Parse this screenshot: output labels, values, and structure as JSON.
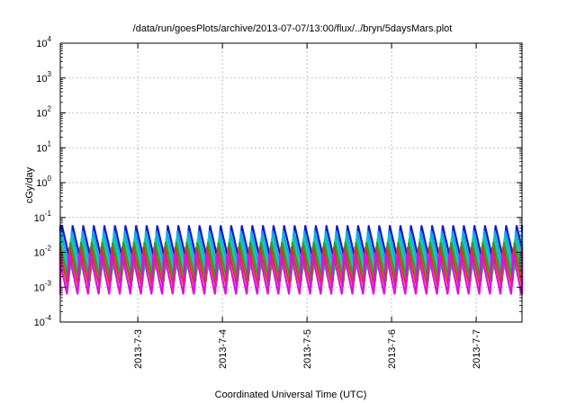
{
  "chart_data": {
    "type": "line",
    "title": "/data/run/goesPlots/archive/2013-07-07/13:00/flux/../bryn/5daysMars.plot",
    "xlabel": "Coordinated Universal Time (UTC)",
    "ylabel": "cGy/day",
    "yscale": "log",
    "ylim_exponent": [
      -4,
      4
    ],
    "ytick_labels": [
      {
        "base": "10",
        "exp": "-4"
      },
      {
        "base": "10",
        "exp": "-3"
      },
      {
        "base": "10",
        "exp": "-2"
      },
      {
        "base": "10",
        "exp": "-1"
      },
      {
        "base": "10",
        "exp": "0"
      },
      {
        "base": "10",
        "exp": "1"
      },
      {
        "base": "10",
        "exp": "2"
      },
      {
        "base": "10",
        "exp": "3"
      },
      {
        "base": "10",
        "exp": "4"
      }
    ],
    "xlim": [
      "2013-07-02 02:00",
      "2013-07-07 13:00"
    ],
    "x_ticks": [
      "2013-07-03",
      "2013-07-04",
      "2013-07-05",
      "2013-07-06",
      "2013-07-07"
    ],
    "xtick_labels": [
      "2013-7-3",
      "2013-7-4",
      "2013-7-5",
      "2013-7-6",
      "2013-7-7"
    ],
    "grid": true,
    "oscillation_period_hours": 3,
    "series": [
      {
        "color": "#1414d6",
        "peak": 0.06,
        "trough": 0.0045
      },
      {
        "color": "#12a9e6",
        "peak": 0.04,
        "trough": 0.003
      },
      {
        "color": "#19c7b0",
        "peak": 0.028,
        "trough": 0.0021
      },
      {
        "color": "#2e9c2a",
        "peak": 0.02,
        "trough": 0.0015
      },
      {
        "color": "#d23a18",
        "peak": 0.014,
        "trough": 0.001
      },
      {
        "color": "#e10fe1",
        "peak": 0.01,
        "trough": 0.0006
      }
    ]
  }
}
